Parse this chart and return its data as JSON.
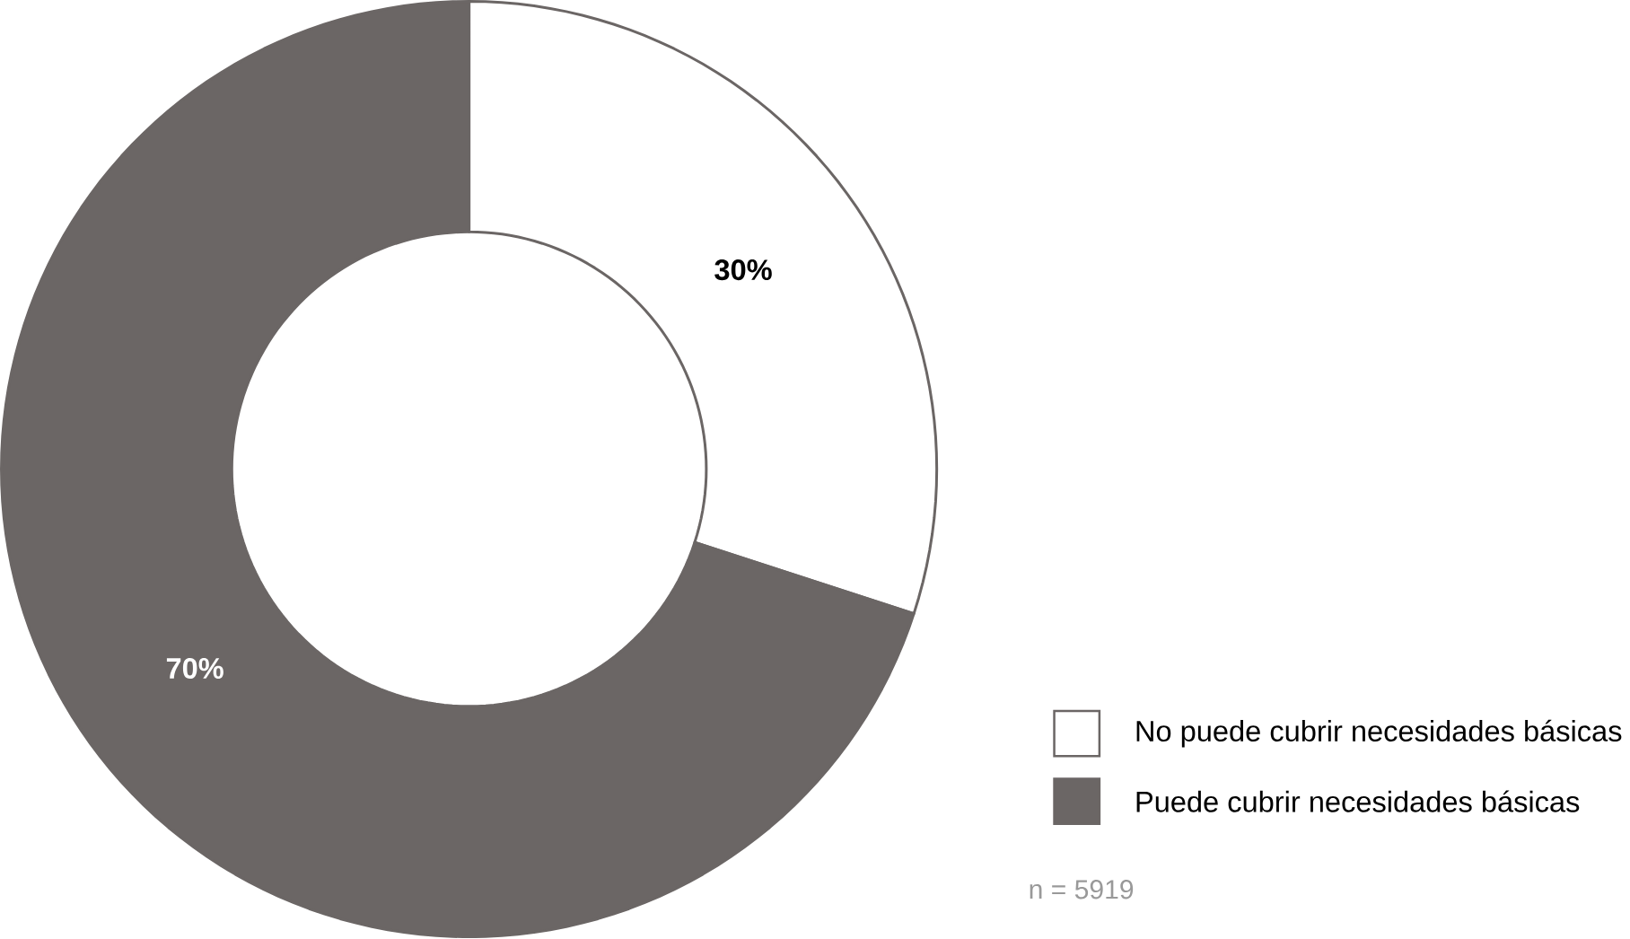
{
  "chart_data": {
    "type": "donut",
    "categories": [
      "No puede cubrir necesidades básicas",
      "Puede cubrir necesidades básicas"
    ],
    "values": [
      30,
      70
    ],
    "colors": [
      "#ffffff",
      "#6b6665"
    ],
    "value_labels": [
      "30%",
      "70%"
    ],
    "legend": "bottom right",
    "annotations": [
      "n = 5919"
    ]
  }
}
